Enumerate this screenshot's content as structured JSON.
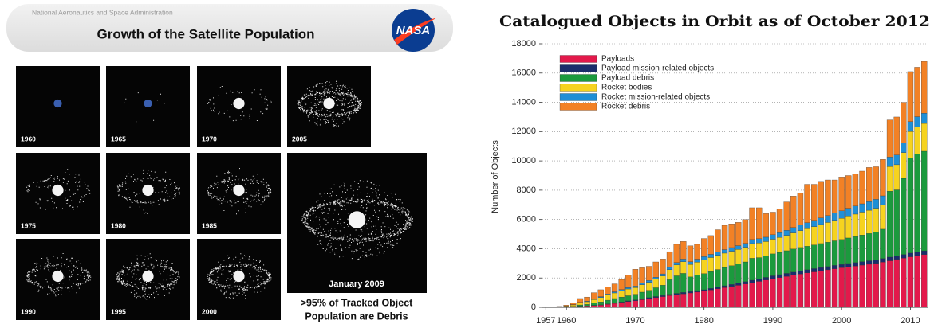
{
  "left_panel": {
    "agency": "National Aeronautics and Space Administration",
    "title": "Growth of the Satellite Population",
    "logo": "NASA",
    "panels": [
      "1960",
      "1965",
      "1970",
      "2005",
      "1975",
      "1980",
      "1985",
      "1990",
      "1995",
      "2000"
    ],
    "big_panel_label": "January 2009",
    "caption_lines": [
      ">95% of Tracked Object",
      "Population are Debris"
    ]
  },
  "chart_data": {
    "type": "bar",
    "stacked": true,
    "title": "Catalogued Objects in Orbit as of October 2012",
    "y_label": "Number of Objects",
    "x": [
      1957,
      1958,
      1959,
      1960,
      1961,
      1962,
      1963,
      1964,
      1965,
      1966,
      1967,
      1968,
      1969,
      1970,
      1971,
      1972,
      1973,
      1974,
      1975,
      1976,
      1977,
      1978,
      1979,
      1980,
      1981,
      1982,
      1983,
      1984,
      1985,
      1986,
      1987,
      1988,
      1989,
      1990,
      1991,
      1992,
      1993,
      1994,
      1995,
      1996,
      1997,
      1998,
      1999,
      2000,
      2001,
      2002,
      2003,
      2004,
      2005,
      2006,
      2007,
      2008,
      2009,
      2010,
      2011,
      2012
    ],
    "xlim": [
      1956.5,
      2012.5
    ],
    "xticks": [
      1957,
      1960,
      1970,
      1980,
      1990,
      2000,
      2010
    ],
    "ylim": [
      0,
      18000
    ],
    "yticks": [
      0,
      2000,
      4000,
      6000,
      8000,
      10000,
      12000,
      14000,
      16000,
      18000
    ],
    "grid": true,
    "legend": "upper left",
    "series": [
      {
        "name": "Payloads",
        "color": "#e3194b",
        "values": [
          1,
          3,
          8,
          20,
          40,
          70,
          90,
          120,
          150,
          210,
          270,
          330,
          390,
          450,
          520,
          590,
          660,
          730,
          800,
          860,
          920,
          980,
          1040,
          1100,
          1180,
          1260,
          1340,
          1420,
          1500,
          1590,
          1680,
          1770,
          1860,
          1950,
          2030,
          2110,
          2190,
          2270,
          2350,
          2420,
          2490,
          2560,
          2630,
          2700,
          2760,
          2820,
          2880,
          2940,
          3000,
          3090,
          3180,
          3270,
          3360,
          3450,
          3520,
          3600
        ]
      },
      {
        "name": "Payload mission-related objects",
        "color": "#1b2d6b",
        "values": [
          0,
          0,
          1,
          2,
          5,
          10,
          12,
          15,
          20,
          25,
          30,
          40,
          50,
          60,
          65,
          70,
          75,
          80,
          85,
          90,
          95,
          95,
          100,
          100,
          110,
          120,
          130,
          140,
          150,
          160,
          170,
          175,
          180,
          200,
          200,
          205,
          210,
          215,
          220,
          220,
          225,
          225,
          230,
          230,
          235,
          235,
          240,
          240,
          245,
          245,
          250,
          250,
          250,
          255,
          260,
          260
        ]
      },
      {
        "name": "Payload debris",
        "color": "#1b9a3d",
        "values": [
          0,
          0,
          0,
          10,
          30,
          80,
          100,
          150,
          200,
          250,
          300,
          330,
          350,
          380,
          450,
          500,
          600,
          700,
          1000,
          1200,
          1300,
          1000,
          1050,
          1100,
          1150,
          1200,
          1250,
          1280,
          1300,
          1350,
          1500,
          1450,
          1450,
          1500,
          1520,
          1550,
          1580,
          1600,
          1600,
          1620,
          1640,
          1660,
          1680,
          1700,
          1740,
          1780,
          1820,
          1860,
          1900,
          2000,
          4500,
          4500,
          5200,
          6500,
          6700,
          6800
        ]
      },
      {
        "name": "Rocket bodies",
        "color": "#f6d31f",
        "values": [
          5,
          15,
          25,
          50,
          90,
          150,
          180,
          250,
          300,
          350,
          380,
          420,
          460,
          450,
          500,
          540,
          580,
          620,
          680,
          740,
          800,
          850,
          900,
          950,
          960,
          970,
          980,
          990,
          1000,
          1000,
          1000,
          1000,
          1000,
          1000,
          1020,
          1050,
          1100,
          1150,
          1200,
          1250,
          1300,
          1350,
          1400,
          1450,
          1500,
          1530,
          1560,
          1590,
          1620,
          1650,
          1680,
          1720,
          1760,
          1800,
          1850,
          1900
        ]
      },
      {
        "name": "Rocket mission-related objects",
        "color": "#1f8fd6",
        "values": [
          0,
          2,
          5,
          10,
          20,
          30,
          40,
          50,
          60,
          70,
          80,
          90,
          100,
          110,
          120,
          130,
          140,
          150,
          160,
          170,
          180,
          190,
          200,
          210,
          220,
          230,
          240,
          250,
          260,
          270,
          280,
          290,
          300,
          310,
          330,
          350,
          370,
          390,
          410,
          430,
          450,
          470,
          490,
          510,
          530,
          550,
          570,
          590,
          610,
          630,
          650,
          660,
          670,
          680,
          690,
          700
        ]
      },
      {
        "name": "Rocket debris",
        "color": "#f28125",
        "values": [
          4,
          10,
          21,
          58,
          115,
          260,
          278,
          415,
          470,
          495,
          540,
          690,
          850,
          1150,
          1045,
          970,
          1045,
          1020,
          1075,
          1240,
          1205,
          1085,
          1010,
          1240,
          1280,
          1520,
          1660,
          1620,
          1590,
          1630,
          2170,
          2115,
          1610,
          1540,
          1600,
          1935,
          2150,
          2175,
          2620,
          2460,
          2495,
          2435,
          2270,
          2310,
          2235,
          2185,
          2230,
          2330,
          2225,
          2485,
          2540,
          2600,
          2760,
          3415,
          3380,
          3540
        ]
      }
    ]
  }
}
